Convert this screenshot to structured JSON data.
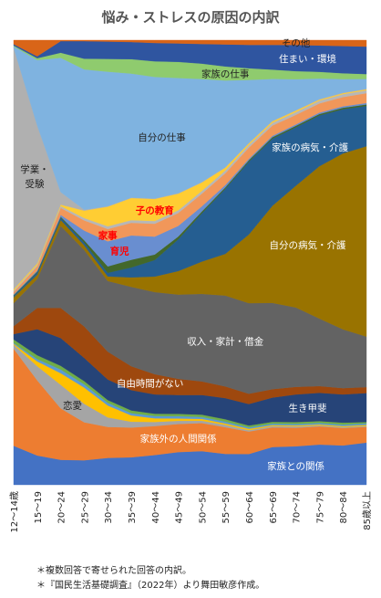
{
  "title": "悩み・ストレスの原因の内訳",
  "notes": [
    "＊複数回答で寄せられた回答の内訳。",
    "＊『国民生活基礎調査』（2022年）より舞田敏彦作成。"
  ],
  "chart_data": {
    "type": "area",
    "stacked_percent": true,
    "title": "悩み・ストレスの原因の内訳",
    "xlabel": "",
    "ylabel": "",
    "ylim": [
      0,
      100
    ],
    "x": [
      "12～14歳",
      "15～19",
      "20～24",
      "25～29",
      "30～34",
      "35～39",
      "40～44",
      "45～49",
      "50～54",
      "55～59",
      "60～64",
      "65～69",
      "70～74",
      "75～79",
      "80～84",
      "85歳以上"
    ],
    "series": [
      {
        "name": "家族との関係",
        "color": "#4472C4",
        "values": [
          8.8,
          6.2,
          5.4,
          5.3,
          5.9,
          6.1,
          6.5,
          7.1,
          7.2,
          6.6,
          6.6,
          8.1,
          8.1,
          8.4,
          8.1,
          8.6
        ]
      },
      {
        "name": "家族外の人間関係",
        "color": "#ED7D31",
        "values": [
          21.9,
          15.9,
          11.1,
          8.2,
          6.8,
          6.6,
          6.3,
          6.1,
          6.0,
          5.7,
          4.8,
          4.2,
          3.9,
          3.8,
          3.6,
          3.2
        ]
      },
      {
        "name": "恋愛",
        "color": "#A5A5A5",
        "values": [
          0.9,
          3.0,
          5.1,
          4.0,
          2.1,
          1.3,
          0.9,
          0.7,
          0.5,
          0.5,
          0.3,
          0.3,
          0.3,
          0.2,
          0.2,
          0.2
        ]
      },
      {
        "name": "",
        "color": "#FFC000",
        "values": [
          0.2,
          1.0,
          2.5,
          3.5,
          2.6,
          1.4,
          0.8,
          0.5,
          0.4,
          0.3,
          0.3,
          0.2,
          0.2,
          0.2,
          0.2,
          0.2
        ]
      },
      {
        "name": "",
        "color": "#5B9BD5",
        "values": [
          0.2,
          0.5,
          0.8,
          0.7,
          0.6,
          0.5,
          0.5,
          0.5,
          0.4,
          0.4,
          0.3,
          0.3,
          0.3,
          0.3,
          0.3,
          0.3
        ]
      },
      {
        "name": "",
        "color": "#70AD47",
        "values": [
          0.8,
          0.8,
          0.8,
          0.7,
          0.6,
          0.6,
          0.5,
          0.5,
          0.5,
          0.5,
          0.4,
          0.4,
          0.4,
          0.4,
          0.4,
          0.3
        ]
      },
      {
        "name": "生き甲斐",
        "color": "#264478",
        "values": [
          1.2,
          5.5,
          6.0,
          5.0,
          4.5,
          4.5,
          4.2,
          4.1,
          4.2,
          4.5,
          4.6,
          5.2,
          5.8,
          5.9,
          5.8,
          5.9
        ]
      },
      {
        "name": "自由時間がない",
        "color": "#9E480E",
        "values": [
          1.8,
          4.5,
          6.5,
          6.8,
          6.1,
          5.3,
          4.4,
          3.5,
          2.9,
          2.5,
          2.2,
          1.8,
          1.6,
          1.4,
          1.3,
          1.2
        ]
      },
      {
        "name": "収入・家計・借金",
        "color": "#636363",
        "values": [
          5.2,
          6.1,
          17.7,
          16.5,
          15.5,
          17.6,
          17.9,
          18.3,
          18.7,
          19.4,
          19.4,
          18.5,
          16.7,
          14.1,
          12.1,
          10.3
        ]
      },
      {
        "name": "自分の病気・介護",
        "color": "#997300",
        "values": [
          1.3,
          0.9,
          1.3,
          1.0,
          1.0,
          2.1,
          3.4,
          5.1,
          6.9,
          8.9,
          14.7,
          20.8,
          25.6,
          31.8,
          36.2,
          38.8
        ]
      },
      {
        "name": "家族の病気・介護",
        "color": "#255E91",
        "values": [
          0.3,
          0.5,
          0.5,
          0.6,
          0.8,
          2.2,
          3.6,
          6.9,
          10.3,
          13.9,
          15.6,
          14.4,
          12.3,
          10.6,
          9.1,
          8.2
        ]
      },
      {
        "name": "",
        "color": "#43682B",
        "values": [
          0.2,
          0.2,
          0.2,
          0.5,
          1.4,
          1.7,
          1.2,
          0.6,
          0.4,
          0.3,
          0.3,
          0.3,
          0.3,
          0.3,
          0.3,
          0.3
        ]
      },
      {
        "name": "育児",
        "color": "#698ED0",
        "values": [
          0.2,
          0.2,
          0.4,
          2.1,
          5.5,
          5.4,
          3.9,
          2.3,
          1.1,
          0.5,
          0.3,
          0.3,
          0.3,
          0.3,
          0.3,
          0.3
        ]
      },
      {
        "name": "家事",
        "color": "#F1975A",
        "values": [
          0.5,
          0.9,
          1.5,
          2.2,
          2.7,
          2.8,
          2.8,
          2.8,
          2.7,
          2.5,
          2.4,
          2.2,
          2.0,
          1.9,
          1.9,
          2.0
        ]
      },
      {
        "name": "",
        "color": "#B7B7B7",
        "values": [
          0.3,
          0.3,
          0.4,
          0.5,
          0.6,
          0.6,
          0.6,
          0.6,
          0.6,
          0.6,
          0.6,
          0.6,
          0.6,
          0.6,
          0.6,
          0.6
        ]
      },
      {
        "name": "子の教育",
        "color": "#FFCD33",
        "values": [
          0.3,
          0.3,
          0.3,
          1.6,
          4.3,
          4.9,
          4.8,
          3.6,
          1.8,
          0.6,
          0.3,
          0.3,
          0.3,
          0.2,
          0.2,
          0.2
        ]
      },
      {
        "name": "学業・受験",
        "color": "#B0B0B0",
        "values": [
          54.5,
          29.2,
          2.7,
          0.2,
          0.1,
          0.1,
          0.1,
          0.1,
          0.1,
          0.1,
          0.1,
          0.1,
          0.1,
          0.1,
          0.1,
          0.1
        ]
      },
      {
        "name": "自分の仕事",
        "color": "#7FB3E0",
        "values": [
          0.3,
          13.8,
          29.0,
          30.3,
          29.5,
          27.5,
          26.5,
          25.0,
          22.0,
          18.5,
          13.5,
          9.0,
          6.5,
          4.3,
          2.8,
          2.0
        ]
      },
      {
        "name": "家族の仕事",
        "color": "#8FCB6E",
        "values": [
          0.2,
          0.4,
          1.1,
          2.3,
          2.8,
          3.2,
          3.4,
          3.5,
          3.3,
          3.0,
          2.5,
          2.0,
          1.7,
          1.4,
          1.2,
          1.0
        ]
      },
      {
        "name": "住まい・環境",
        "color": "#2F55A0",
        "values": [
          0.3,
          0.4,
          2.5,
          3.8,
          3.8,
          3.8,
          4.0,
          4.0,
          4.2,
          4.7,
          5.0,
          5.3,
          5.5,
          5.5,
          5.6,
          5.6
        ]
      },
      {
        "name": "その他",
        "color": "#D96518",
        "values": [
          0.9,
          3.4,
          0.2,
          0.2,
          0.3,
          0.4,
          0.6,
          0.7,
          0.8,
          0.9,
          1.0,
          1.0,
          1.0,
          1.1,
          1.2,
          1.3
        ]
      }
    ],
    "labels": [
      {
        "text": "家族との関係",
        "series": 0,
        "xi": 12,
        "color": "#ffffff"
      },
      {
        "text": "家族外の人間関係",
        "series": 1,
        "xi": 7,
        "color": "#ffffff"
      },
      {
        "text": "恋愛",
        "series": 2,
        "xi": 2.5,
        "color": "#222222"
      },
      {
        "text": "生き甲斐",
        "series": 6,
        "xi": 12.5,
        "color": "#ffffff"
      },
      {
        "text": "自由時間がない",
        "series": 7,
        "xi": 5.8,
        "color": "#ffffff"
      },
      {
        "text": "収入・家計・借金",
        "series": 8,
        "xi": 9,
        "color": "#ffffff"
      },
      {
        "text": "自分の病気・介護",
        "series": 9,
        "xi": 12.5,
        "color": "#ffffff"
      },
      {
        "text": "家族の病気・介護",
        "series": 10,
        "xi": 12.6,
        "color": "#ffffff"
      },
      {
        "text": "育児",
        "series": 12,
        "xi": 4.5,
        "color": "#FF0000"
      },
      {
        "text": "家事",
        "series": 13,
        "xi": 4,
        "color": "#FF0000"
      },
      {
        "text": "子の教育",
        "series": 15,
        "xi": 6,
        "color": "#FF0000"
      },
      {
        "text": "学業・",
        "series": 16,
        "xi": 0.3,
        "dy": -8,
        "color": "#222222"
      },
      {
        "text": "受験",
        "series": 16,
        "xi": 0.3,
        "dy": 8,
        "color": "#222222"
      },
      {
        "text": "自分の仕事",
        "series": 17,
        "xi": 6.3,
        "color": "#222222"
      },
      {
        "text": "家族の仕事",
        "series": 18,
        "xi": 9,
        "color": "#222222"
      },
      {
        "text": "住まい・環境",
        "series": 19,
        "xi": 12.5,
        "color": "#ffffff"
      },
      {
        "text": "その他",
        "series": 20,
        "xi": 12,
        "color": "#222222"
      }
    ]
  }
}
